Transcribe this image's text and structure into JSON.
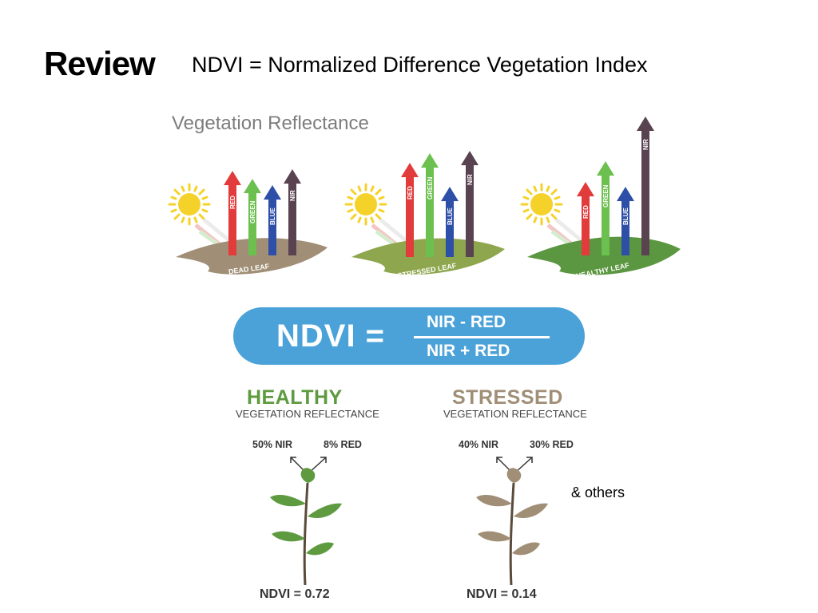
{
  "slide": {
    "title": "Review",
    "subtitle": "NDVI = Normalized Difference Vegetation Index"
  },
  "reflectance": {
    "title": "Vegetation Reflectance",
    "bands": [
      "RED",
      "GREEN",
      "BLUE",
      "NIR"
    ],
    "leaves": [
      {
        "label": "DEAD LEAF",
        "leaf_color": "#a08e76"
      },
      {
        "label": "STRESSED LEAF",
        "leaf_color": "#8ea64d"
      },
      {
        "label": "HEALTHY LEAF",
        "leaf_color": "#5b9640"
      }
    ],
    "band_colors": {
      "RED": "#e23b3b",
      "GREEN": "#6cc04f",
      "BLUE": "#2e4fa8",
      "NIR": "#5a4350"
    }
  },
  "formula": {
    "lhs": "NDVI =",
    "numerator": "NIR - RED",
    "denominator": "NIR + RED",
    "pill_color": "#4ba2d8"
  },
  "examples": {
    "healthy": {
      "title": "HEALTHY",
      "subtitle": "VEGETATION REFLECTANCE",
      "nir": "50% NIR",
      "red": "8% RED",
      "ndvi": "NDVI = 0.72",
      "color": "#5e9a3f"
    },
    "stressed": {
      "title": "STRESSED",
      "subtitle": "VEGETATION REFLECTANCE",
      "nir": "40% NIR",
      "red": "30% RED",
      "ndvi": "NDVI = 0.14",
      "color": "#a08e76"
    },
    "note": "& others"
  }
}
